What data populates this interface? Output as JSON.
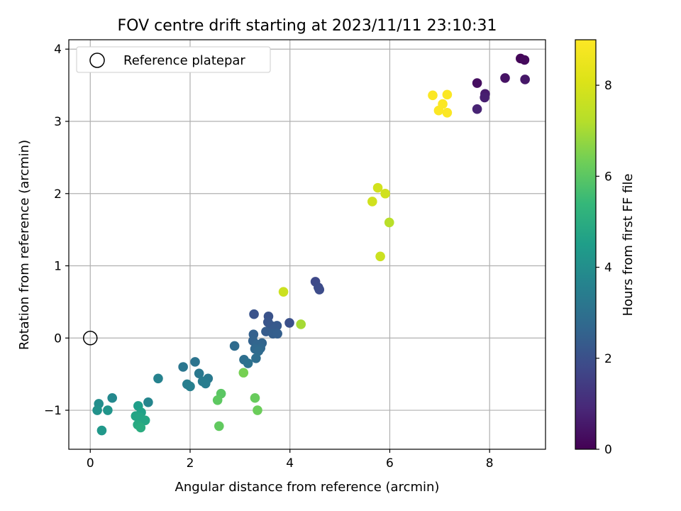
{
  "chart_data": {
    "type": "scatter",
    "title": "FOV centre drift starting at 2023/11/11 23:10:31",
    "xlabel": "Angular distance from reference (arcmin)",
    "ylabel": "Rotation from reference (arcmin)",
    "xlim": [
      -0.43,
      9.12
    ],
    "ylim": [
      -1.54,
      4.13
    ],
    "xticks": [
      0,
      2,
      4,
      6,
      8
    ],
    "yticks": [
      -1,
      0,
      1,
      2,
      3,
      4
    ],
    "xtick_labels": [
      "0",
      "2",
      "4",
      "6",
      "8"
    ],
    "ytick_labels": [
      "−1",
      "0",
      "1",
      "2",
      "3",
      "4"
    ],
    "grid": true,
    "legend": {
      "placement": "top-left",
      "label": "Reference platepar"
    },
    "reference_point": {
      "x": 0,
      "y": 0
    },
    "colorbar": {
      "label": "Hours from first FF file",
      "colormap": "viridis",
      "range": [
        0,
        9.0
      ],
      "ticks": [
        0,
        2,
        4,
        6,
        8
      ],
      "tick_labels": [
        "0",
        "2",
        "4",
        "6",
        "8"
      ]
    },
    "series": [
      {
        "points": [
          {
            "x": 8.62,
            "y": 3.87,
            "c": 0.1
          },
          {
            "x": 8.7,
            "y": 3.85,
            "c": 0.2
          },
          {
            "x": 7.75,
            "y": 3.53,
            "c": 0.3
          },
          {
            "x": 8.31,
            "y": 3.6,
            "c": 0.4
          },
          {
            "x": 8.71,
            "y": 3.58,
            "c": 0.5
          },
          {
            "x": 7.91,
            "y": 3.38,
            "c": 0.6
          },
          {
            "x": 7.9,
            "y": 3.33,
            "c": 0.7
          },
          {
            "x": 7.75,
            "y": 3.17,
            "c": 0.8
          },
          {
            "x": 4.51,
            "y": 0.78,
            "c": 1.8
          },
          {
            "x": 4.57,
            "y": 0.7,
            "c": 1.85
          },
          {
            "x": 4.59,
            "y": 0.67,
            "c": 1.9
          },
          {
            "x": 3.99,
            "y": 0.21,
            "c": 2.0
          },
          {
            "x": 3.57,
            "y": 0.3,
            "c": 2.05
          },
          {
            "x": 3.28,
            "y": 0.33,
            "c": 2.1
          },
          {
            "x": 3.56,
            "y": 0.22,
            "c": 2.15
          },
          {
            "x": 3.62,
            "y": 0.17,
            "c": 2.2
          },
          {
            "x": 3.74,
            "y": 0.17,
            "c": 2.25
          },
          {
            "x": 3.68,
            "y": 0.12,
            "c": 2.3
          },
          {
            "x": 3.52,
            "y": 0.09,
            "c": 2.35
          },
          {
            "x": 3.66,
            "y": 0.06,
            "c": 2.4
          },
          {
            "x": 3.75,
            "y": 0.06,
            "c": 2.45
          },
          {
            "x": 3.27,
            "y": 0.05,
            "c": 2.5
          },
          {
            "x": 3.26,
            "y": -0.04,
            "c": 2.55
          },
          {
            "x": 3.44,
            "y": -0.07,
            "c": 2.6
          },
          {
            "x": 3.34,
            "y": -0.09,
            "c": 2.65
          },
          {
            "x": 3.41,
            "y": -0.14,
            "c": 2.7
          },
          {
            "x": 3.3,
            "y": -0.15,
            "c": 2.75
          },
          {
            "x": 3.37,
            "y": -0.18,
            "c": 2.8
          },
          {
            "x": 2.89,
            "y": -0.11,
            "c": 2.85
          },
          {
            "x": 3.32,
            "y": -0.28,
            "c": 2.9
          },
          {
            "x": 3.08,
            "y": -0.3,
            "c": 2.95
          },
          {
            "x": 3.16,
            "y": -0.35,
            "c": 3.0
          },
          {
            "x": 2.1,
            "y": -0.33,
            "c": 3.1
          },
          {
            "x": 1.86,
            "y": -0.4,
            "c": 3.2
          },
          {
            "x": 2.18,
            "y": -0.49,
            "c": 3.25
          },
          {
            "x": 2.36,
            "y": -0.56,
            "c": 3.3
          },
          {
            "x": 2.25,
            "y": -0.6,
            "c": 3.35
          },
          {
            "x": 2.31,
            "y": -0.63,
            "c": 3.4
          },
          {
            "x": 1.94,
            "y": -0.64,
            "c": 3.45
          },
          {
            "x": 2.0,
            "y": -0.67,
            "c": 3.5
          },
          {
            "x": 1.36,
            "y": -0.56,
            "c": 3.6
          },
          {
            "x": 1.16,
            "y": -0.89,
            "c": 3.7
          },
          {
            "x": 0.44,
            "y": -0.83,
            "c": 3.8
          },
          {
            "x": 0.17,
            "y": -0.91,
            "c": 4.0
          },
          {
            "x": 0.14,
            "y": -1.0,
            "c": 4.1
          },
          {
            "x": 0.35,
            "y": -1.0,
            "c": 4.2
          },
          {
            "x": 0.23,
            "y": -1.28,
            "c": 4.3
          },
          {
            "x": 0.96,
            "y": -0.94,
            "c": 4.5
          },
          {
            "x": 1.02,
            "y": -1.03,
            "c": 4.6
          },
          {
            "x": 0.91,
            "y": -1.08,
            "c": 4.7
          },
          {
            "x": 1.0,
            "y": -1.1,
            "c": 4.75
          },
          {
            "x": 1.1,
            "y": -1.14,
            "c": 4.8
          },
          {
            "x": 0.95,
            "y": -1.2,
            "c": 4.9
          },
          {
            "x": 1.01,
            "y": -1.24,
            "c": 5.0
          },
          {
            "x": 2.62,
            "y": -0.77,
            "c": 6.0
          },
          {
            "x": 2.55,
            "y": -0.86,
            "c": 6.05
          },
          {
            "x": 2.58,
            "y": -1.22,
            "c": 6.1
          },
          {
            "x": 3.3,
            "y": -0.83,
            "c": 6.2
          },
          {
            "x": 3.35,
            "y": -1.0,
            "c": 6.25
          },
          {
            "x": 3.07,
            "y": -0.48,
            "c": 6.4
          },
          {
            "x": 4.22,
            "y": 0.19,
            "c": 7.0
          },
          {
            "x": 5.99,
            "y": 1.6,
            "c": 7.3
          },
          {
            "x": 3.87,
            "y": 0.64,
            "c": 7.7
          },
          {
            "x": 5.81,
            "y": 1.13,
            "c": 7.7
          },
          {
            "x": 5.65,
            "y": 1.89,
            "c": 7.8
          },
          {
            "x": 5.91,
            "y": 2.0,
            "c": 7.8
          },
          {
            "x": 5.76,
            "y": 2.08,
            "c": 7.85
          },
          {
            "x": 6.86,
            "y": 3.36,
            "c": 8.95
          },
          {
            "x": 7.15,
            "y": 3.37,
            "c": 8.95
          },
          {
            "x": 7.06,
            "y": 3.24,
            "c": 8.95
          },
          {
            "x": 6.98,
            "y": 3.15,
            "c": 8.95
          },
          {
            "x": 7.15,
            "y": 3.12,
            "c": 8.95
          }
        ]
      }
    ]
  }
}
